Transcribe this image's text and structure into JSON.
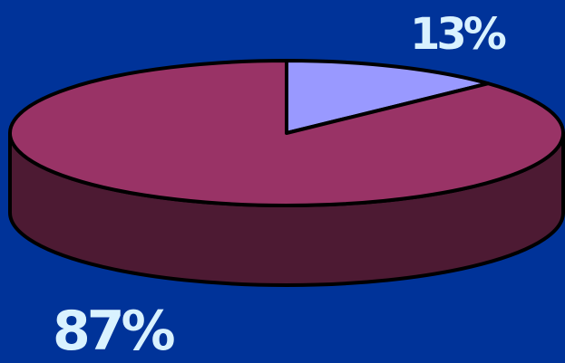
{
  "chart_data": {
    "type": "pie",
    "style": "3d",
    "slices": [
      {
        "label": "13%",
        "value": 13,
        "color": "#9999ff"
      },
      {
        "label": "87%",
        "value": 87,
        "color": "#993366"
      }
    ],
    "side_color": "#4d1a33",
    "outline_color": "#000000",
    "label_color": "#d9f2ff"
  },
  "background": "#003399"
}
